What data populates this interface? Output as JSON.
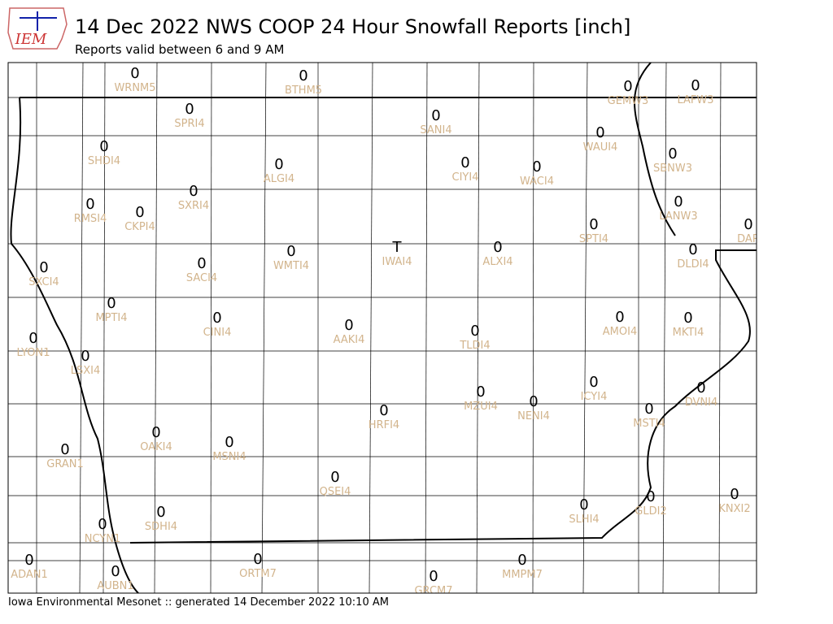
{
  "header": {
    "logo": "IEM",
    "title": "14 Dec 2022 NWS COOP 24 Hour Snowfall Reports [inch]",
    "subtitle": "Reports valid between 6 and 9 AM"
  },
  "stations": [
    {
      "id": "WRNM5",
      "value": "0"
    },
    {
      "id": "BTHM5",
      "value": "0"
    },
    {
      "id": "GEMW3",
      "value": "0"
    },
    {
      "id": "LAFW3",
      "value": "0"
    },
    {
      "id": "SPRI4",
      "value": "0"
    },
    {
      "id": "SANI4",
      "value": "0"
    },
    {
      "id": "SHDI4",
      "value": "0"
    },
    {
      "id": "WAUI4",
      "value": "0"
    },
    {
      "id": "ALGI4",
      "value": "0"
    },
    {
      "id": "CIYI4",
      "value": "0"
    },
    {
      "id": "WACI4",
      "value": "0"
    },
    {
      "id": "SBNW3",
      "value": "0"
    },
    {
      "id": "RMSI4",
      "value": "0"
    },
    {
      "id": "CKPI4",
      "value": "0"
    },
    {
      "id": "SXRI4",
      "value": "0"
    },
    {
      "id": "LANW3",
      "value": "0"
    },
    {
      "id": "SPTI4",
      "value": "0"
    },
    {
      "id": "DAR",
      "value": "0"
    },
    {
      "id": "IWAI4",
      "value": "T"
    },
    {
      "id": "ALXI4",
      "value": "0"
    },
    {
      "id": "WMTI4",
      "value": "0"
    },
    {
      "id": "SACI4",
      "value": "0"
    },
    {
      "id": "DLDI4",
      "value": "0"
    },
    {
      "id": "SXCI4",
      "value": "0"
    },
    {
      "id": "MPTI4",
      "value": "0"
    },
    {
      "id": "CINI4",
      "value": "0"
    },
    {
      "id": "AAKI4",
      "value": "0"
    },
    {
      "id": "TLDI4",
      "value": "0"
    },
    {
      "id": "AMOI4",
      "value": "0"
    },
    {
      "id": "MKTI4",
      "value": "0"
    },
    {
      "id": "LYON1",
      "value": "0"
    },
    {
      "id": "LSXI4",
      "value": "0"
    },
    {
      "id": "ICYI4",
      "value": "0"
    },
    {
      "id": "DVNI4",
      "value": "0"
    },
    {
      "id": "MZUI4",
      "value": "0"
    },
    {
      "id": "NENI4",
      "value": "0"
    },
    {
      "id": "HRFI4",
      "value": "0"
    },
    {
      "id": "MSTI4",
      "value": "0"
    },
    {
      "id": "OAKI4",
      "value": "0"
    },
    {
      "id": "MSNI4",
      "value": "0"
    },
    {
      "id": "GRAN1",
      "value": "0"
    },
    {
      "id": "QSEI4",
      "value": "0"
    },
    {
      "id": "KNXI2",
      "value": "0"
    },
    {
      "id": "GLDI2",
      "value": "0"
    },
    {
      "id": "SLHI4",
      "value": "0"
    },
    {
      "id": "SDHI4",
      "value": "0"
    },
    {
      "id": "NCYN1",
      "value": "0"
    },
    {
      "id": "ADAN1",
      "value": "0"
    },
    {
      "id": "ORTM7",
      "value": "0"
    },
    {
      "id": "MMPM7",
      "value": "0"
    },
    {
      "id": "AUBN1",
      "value": "0"
    },
    {
      "id": "GRCM7",
      "value": "0"
    }
  ],
  "footer": "Iowa Environmental Mesonet :: generated 14 December 2022 10:10 AM"
}
